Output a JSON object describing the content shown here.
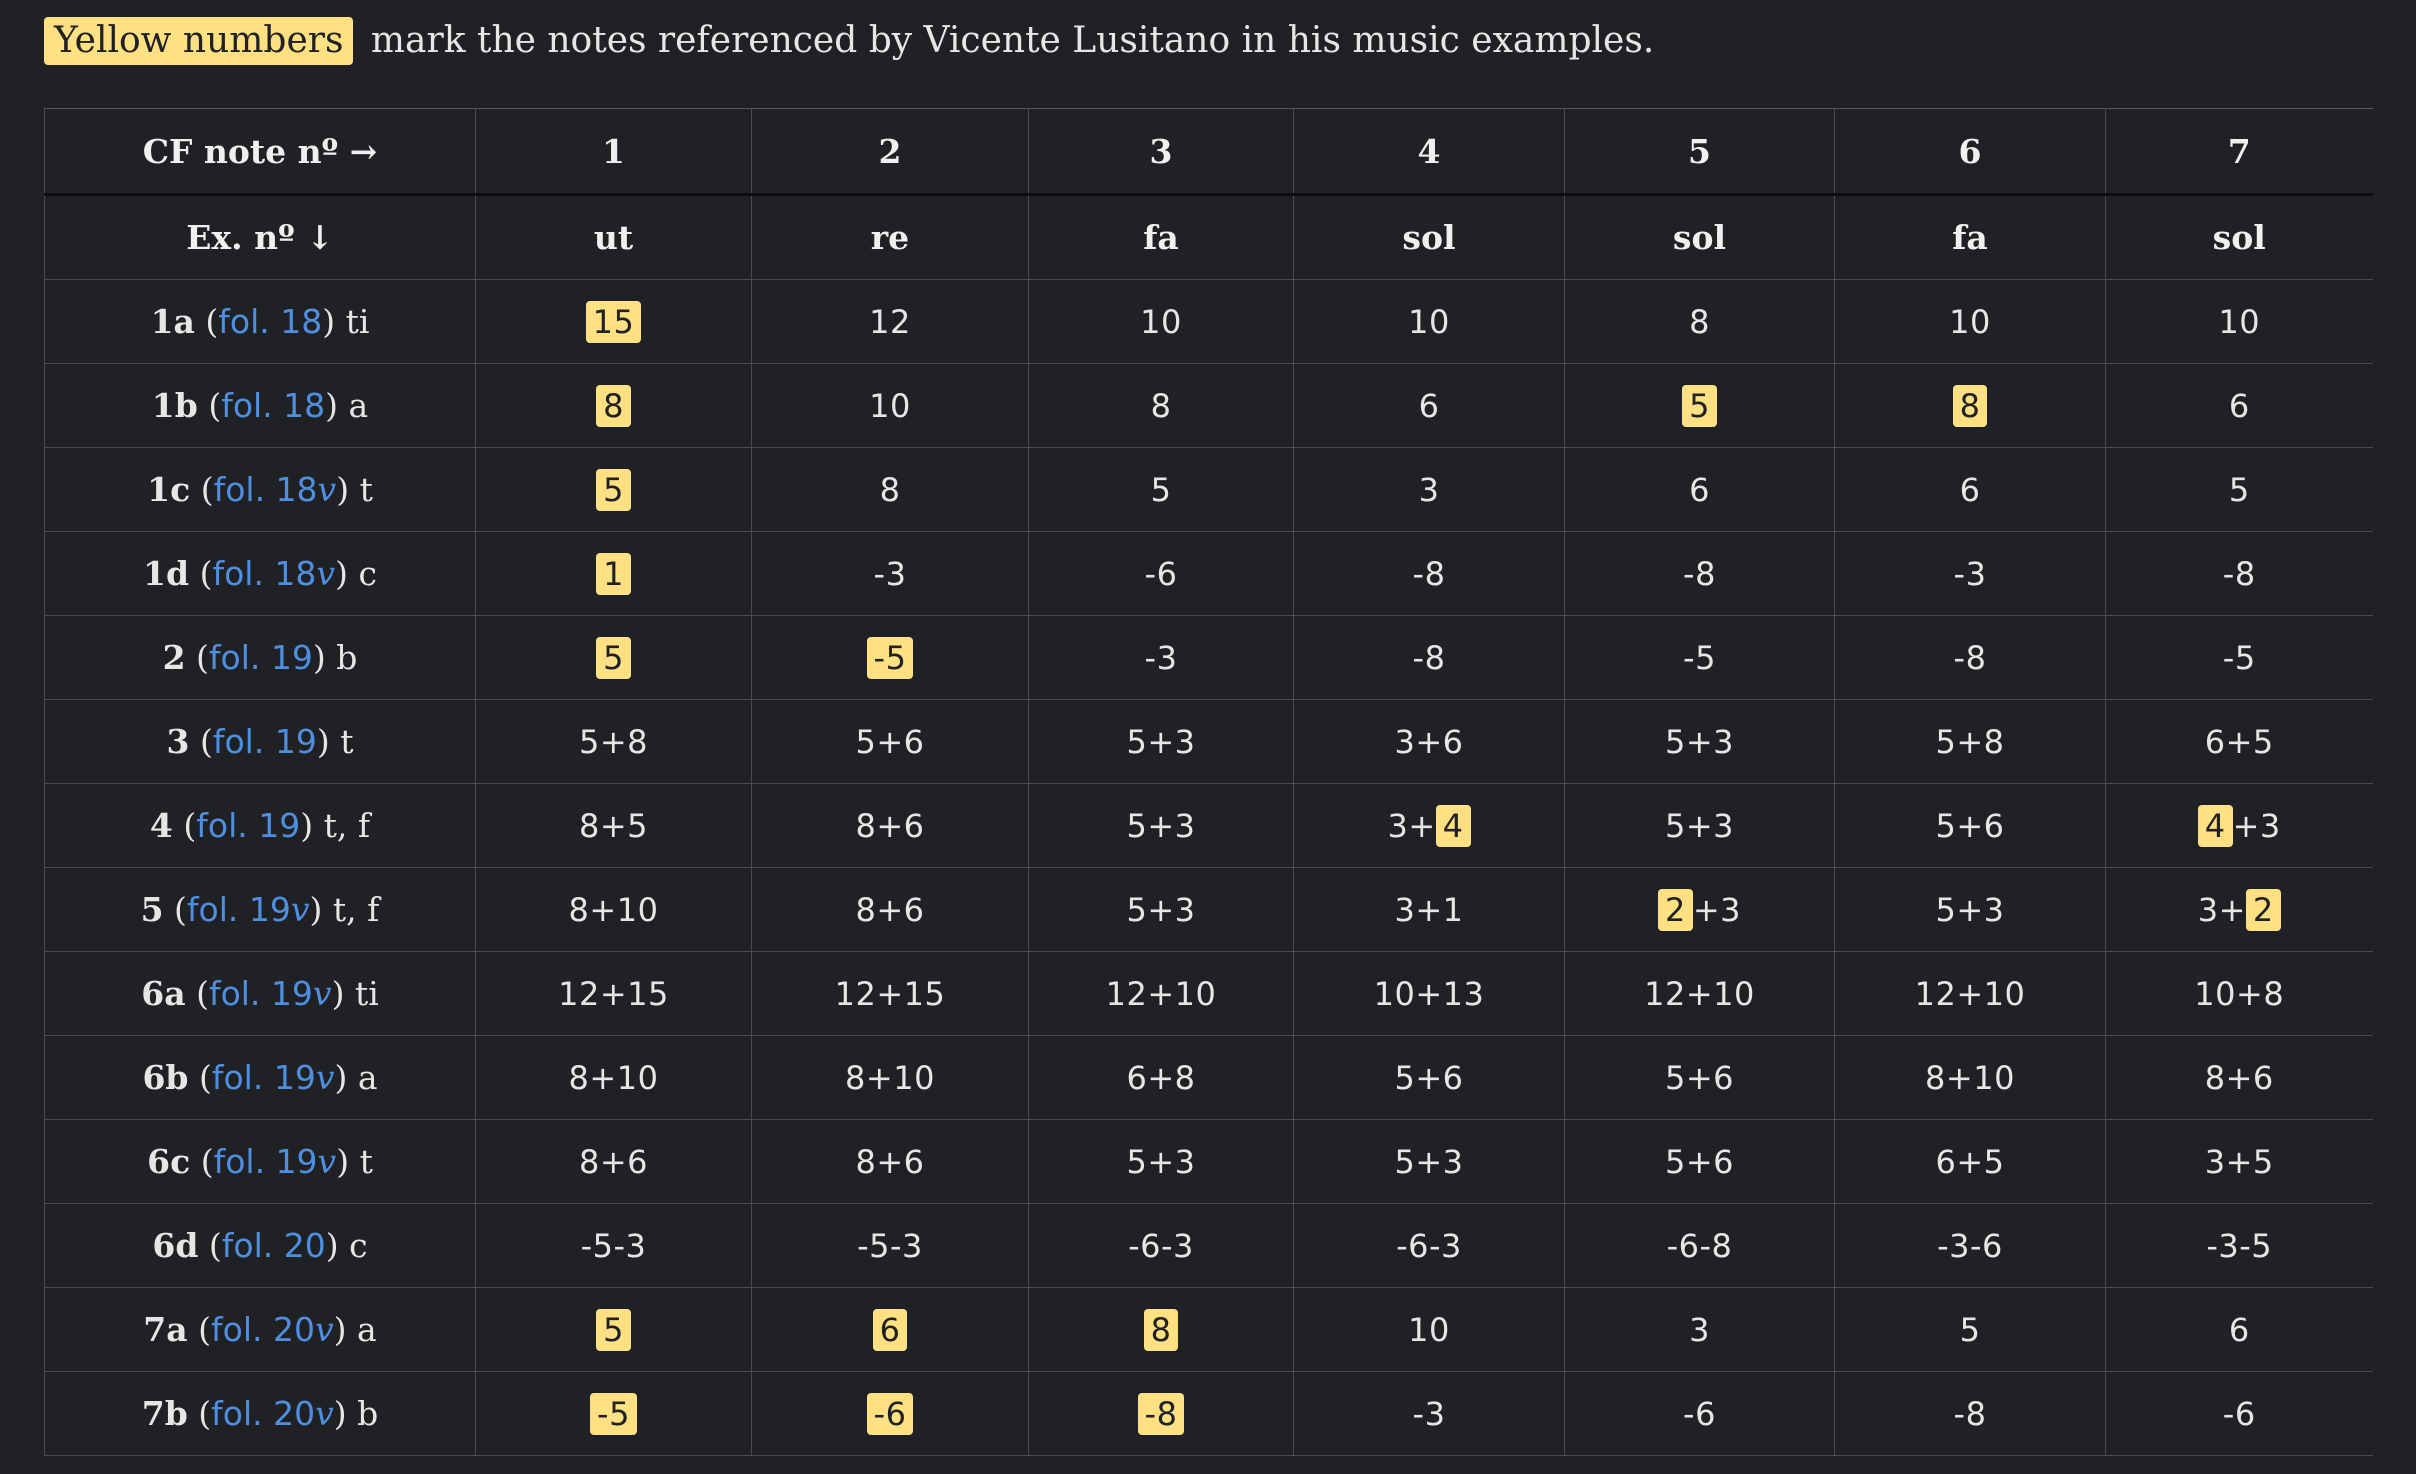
{
  "intro": {
    "legend_label": "Yellow numbers",
    "text": "mark the notes referenced by Vicente Lusitano in his music examples."
  },
  "colors": {
    "background": "#202124",
    "highlight": "#ffe082",
    "link": "#4f8fe0"
  },
  "table": {
    "corner_top": "CF note nº →",
    "corner_bottom": "Ex. nº ↓",
    "note_numbers": [
      "1",
      "2",
      "3",
      "4",
      "5",
      "6",
      "7"
    ],
    "solmization": [
      "ut",
      "re",
      "fa",
      "sol",
      "sol",
      "fa",
      "sol"
    ],
    "rows": [
      {
        "num": "1a",
        "fol": "fol. 18",
        "verso": "",
        "voice": "ti",
        "cells": [
          [
            {
              "t": "15",
              "h": true
            }
          ],
          [
            {
              "t": "12"
            }
          ],
          [
            {
              "t": "10"
            }
          ],
          [
            {
              "t": "10"
            }
          ],
          [
            {
              "t": "8"
            }
          ],
          [
            {
              "t": "10"
            }
          ],
          [
            {
              "t": "10"
            }
          ]
        ]
      },
      {
        "num": "1b",
        "fol": "fol. 18",
        "verso": "",
        "voice": "a",
        "cells": [
          [
            {
              "t": "8",
              "h": true
            }
          ],
          [
            {
              "t": "10"
            }
          ],
          [
            {
              "t": "8"
            }
          ],
          [
            {
              "t": "6"
            }
          ],
          [
            {
              "t": "5",
              "h": true
            }
          ],
          [
            {
              "t": "8",
              "h": true
            }
          ],
          [
            {
              "t": "6"
            }
          ]
        ]
      },
      {
        "num": "1c",
        "fol": "fol. 18",
        "verso": "v",
        "voice": "t",
        "cells": [
          [
            {
              "t": "5",
              "h": true
            }
          ],
          [
            {
              "t": "8"
            }
          ],
          [
            {
              "t": "5"
            }
          ],
          [
            {
              "t": "3"
            }
          ],
          [
            {
              "t": "6"
            }
          ],
          [
            {
              "t": "6"
            }
          ],
          [
            {
              "t": "5"
            }
          ]
        ]
      },
      {
        "num": "1d",
        "fol": "fol. 18",
        "verso": "v",
        "voice": "c",
        "cells": [
          [
            {
              "t": "1",
              "h": true
            }
          ],
          [
            {
              "t": "-3"
            }
          ],
          [
            {
              "t": "-6"
            }
          ],
          [
            {
              "t": "-8"
            }
          ],
          [
            {
              "t": "-8"
            }
          ],
          [
            {
              "t": "-3"
            }
          ],
          [
            {
              "t": "-8"
            }
          ]
        ]
      },
      {
        "num": "2",
        "fol": "fol. 19",
        "verso": "",
        "voice": "b",
        "cells": [
          [
            {
              "t": "5",
              "h": true
            }
          ],
          [
            {
              "t": "-5",
              "h": true
            }
          ],
          [
            {
              "t": "-3"
            }
          ],
          [
            {
              "t": "-8"
            }
          ],
          [
            {
              "t": "-5"
            }
          ],
          [
            {
              "t": "-8"
            }
          ],
          [
            {
              "t": "-5"
            }
          ]
        ]
      },
      {
        "num": "3",
        "fol": "fol. 19",
        "verso": "",
        "voice": "t",
        "cells": [
          [
            {
              "t": "5+8"
            }
          ],
          [
            {
              "t": "5+6"
            }
          ],
          [
            {
              "t": "5+3"
            }
          ],
          [
            {
              "t": "3+6"
            }
          ],
          [
            {
              "t": "5+3"
            }
          ],
          [
            {
              "t": "5+8"
            }
          ],
          [
            {
              "t": "6+5"
            }
          ]
        ]
      },
      {
        "num": "4",
        "fol": "fol. 19",
        "verso": "",
        "voice": "t, f",
        "cells": [
          [
            {
              "t": "8+5"
            }
          ],
          [
            {
              "t": "8+6"
            }
          ],
          [
            {
              "t": "5+3"
            }
          ],
          [
            {
              "t": "3+"
            },
            {
              "t": "4",
              "h": true
            }
          ],
          [
            {
              "t": "5+3"
            }
          ],
          [
            {
              "t": "5+6"
            }
          ],
          [
            {
              "t": "4",
              "h": true
            },
            {
              "t": "+3"
            }
          ]
        ]
      },
      {
        "num": "5",
        "fol": "fol. 19",
        "verso": "v",
        "voice": "t, f",
        "cells": [
          [
            {
              "t": "8+10"
            }
          ],
          [
            {
              "t": "8+6"
            }
          ],
          [
            {
              "t": "5+3"
            }
          ],
          [
            {
              "t": "3+1"
            }
          ],
          [
            {
              "t": "2",
              "h": true
            },
            {
              "t": "+3"
            }
          ],
          [
            {
              "t": "5+3"
            }
          ],
          [
            {
              "t": "3+"
            },
            {
              "t": "2",
              "h": true
            }
          ]
        ]
      },
      {
        "num": "6a",
        "fol": "fol. 19",
        "verso": "v",
        "voice": "ti",
        "cells": [
          [
            {
              "t": "12+15"
            }
          ],
          [
            {
              "t": "12+15"
            }
          ],
          [
            {
              "t": "12+10"
            }
          ],
          [
            {
              "t": "10+13"
            }
          ],
          [
            {
              "t": "12+10"
            }
          ],
          [
            {
              "t": "12+10"
            }
          ],
          [
            {
              "t": "10+8"
            }
          ]
        ]
      },
      {
        "num": "6b",
        "fol": "fol. 19",
        "verso": "v",
        "voice": "a",
        "cells": [
          [
            {
              "t": "8+10"
            }
          ],
          [
            {
              "t": "8+10"
            }
          ],
          [
            {
              "t": "6+8"
            }
          ],
          [
            {
              "t": "5+6"
            }
          ],
          [
            {
              "t": "5+6"
            }
          ],
          [
            {
              "t": "8+10"
            }
          ],
          [
            {
              "t": "8+6"
            }
          ]
        ]
      },
      {
        "num": "6c",
        "fol": "fol. 19",
        "verso": "v",
        "voice": "t",
        "cells": [
          [
            {
              "t": "8+6"
            }
          ],
          [
            {
              "t": "8+6"
            }
          ],
          [
            {
              "t": "5+3"
            }
          ],
          [
            {
              "t": "5+3"
            }
          ],
          [
            {
              "t": "5+6"
            }
          ],
          [
            {
              "t": "6+5"
            }
          ],
          [
            {
              "t": "3+5"
            }
          ]
        ]
      },
      {
        "num": "6d",
        "fol": "fol. 20",
        "verso": "",
        "voice": "c",
        "cells": [
          [
            {
              "t": "-5-3"
            }
          ],
          [
            {
              "t": "-5-3"
            }
          ],
          [
            {
              "t": "-6-3"
            }
          ],
          [
            {
              "t": "-6-3"
            }
          ],
          [
            {
              "t": "-6-8"
            }
          ],
          [
            {
              "t": "-3-6"
            }
          ],
          [
            {
              "t": "-3-5"
            }
          ]
        ]
      },
      {
        "num": "7a",
        "fol": "fol. 20",
        "verso": "v",
        "voice": "a",
        "cells": [
          [
            {
              "t": "5",
              "h": true
            }
          ],
          [
            {
              "t": "6",
              "h": true
            }
          ],
          [
            {
              "t": "8",
              "h": true
            }
          ],
          [
            {
              "t": "10"
            }
          ],
          [
            {
              "t": "3"
            }
          ],
          [
            {
              "t": "5"
            }
          ],
          [
            {
              "t": "6"
            }
          ]
        ]
      },
      {
        "num": "7b",
        "fol": "fol. 20",
        "verso": "v",
        "voice": "b",
        "cells": [
          [
            {
              "t": "-5",
              "h": true
            }
          ],
          [
            {
              "t": "-6",
              "h": true
            }
          ],
          [
            {
              "t": "-8",
              "h": true
            }
          ],
          [
            {
              "t": "-3"
            }
          ],
          [
            {
              "t": "-6"
            }
          ],
          [
            {
              "t": "-8"
            }
          ],
          [
            {
              "t": "-6"
            }
          ]
        ]
      }
    ]
  }
}
